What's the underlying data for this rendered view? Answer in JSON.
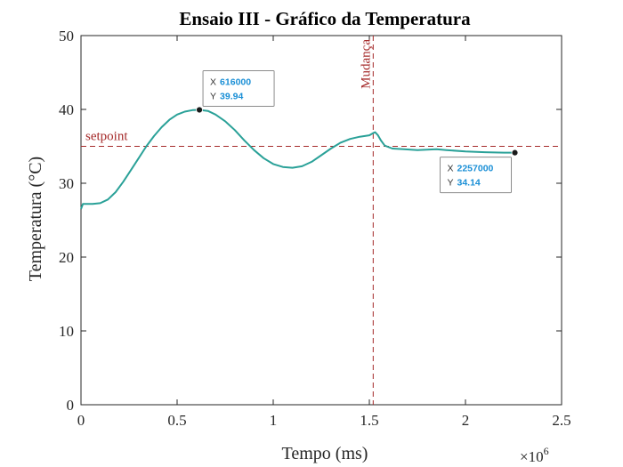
{
  "chart_data": {
    "type": "line",
    "title": "Ensaio III - Gráfico da Temperatura",
    "xlabel": "Tempo (ms)",
    "ylabel": "Temperatura (°C)",
    "x_exponent_label": "×10",
    "x_exponent_power": "6",
    "xlim": [
      0,
      2500000
    ],
    "ylim": [
      0,
      50
    ],
    "xticks": [
      0,
      500000,
      1000000,
      1500000,
      2000000,
      2500000
    ],
    "xtick_labels": [
      "0",
      "0.5",
      "1",
      "1.5",
      "2",
      "2.5"
    ],
    "yticks": [
      0,
      10,
      20,
      30,
      40,
      50
    ],
    "ytick_labels": [
      "0",
      "10",
      "20",
      "30",
      "40",
      "50"
    ],
    "grid": false,
    "series": [
      {
        "color": "#2aa198",
        "x": [
          0,
          10000,
          30000,
          60000,
          100000,
          140000,
          180000,
          220000,
          260000,
          300000,
          340000,
          380000,
          420000,
          460000,
          500000,
          540000,
          580000,
          616000,
          660000,
          700000,
          750000,
          800000,
          850000,
          900000,
          950000,
          1000000,
          1050000,
          1100000,
          1150000,
          1200000,
          1250000,
          1300000,
          1350000,
          1400000,
          1450000,
          1500000,
          1520000,
          1530000,
          1545000,
          1560000,
          1580000,
          1620000,
          1680000,
          1750000,
          1850000,
          1900000,
          2000000,
          2100000,
          2200000,
          2257000
        ],
        "y": [
          26.5,
          27.2,
          27.2,
          27.2,
          27.3,
          27.8,
          28.8,
          30.2,
          31.8,
          33.4,
          35.0,
          36.4,
          37.6,
          38.6,
          39.3,
          39.7,
          39.9,
          39.94,
          39.8,
          39.3,
          38.4,
          37.2,
          35.8,
          34.5,
          33.4,
          32.6,
          32.2,
          32.1,
          32.3,
          32.9,
          33.8,
          34.7,
          35.5,
          36.0,
          36.3,
          36.5,
          36.8,
          36.9,
          36.5,
          35.8,
          35.1,
          34.7,
          34.6,
          34.5,
          34.6,
          34.5,
          34.3,
          34.2,
          34.15,
          34.14
        ]
      }
    ],
    "setpoint": {
      "label": "setpoint",
      "y": 35,
      "color": "#a52a2a"
    },
    "change_marker": {
      "label": "Mudança",
      "x": 1520000,
      "color": "#a52a2a"
    },
    "datatips": [
      {
        "x_label": "X",
        "x_value": "616000",
        "y_label": "Y",
        "y_value": "39.94",
        "x": 616000,
        "y": 39.94,
        "placement": "upper-right"
      },
      {
        "x_label": "X",
        "x_value": "2257000",
        "y_label": "Y",
        "y_value": "34.14",
        "x": 2257000,
        "y": 34.14,
        "placement": "lower-left"
      }
    ]
  }
}
